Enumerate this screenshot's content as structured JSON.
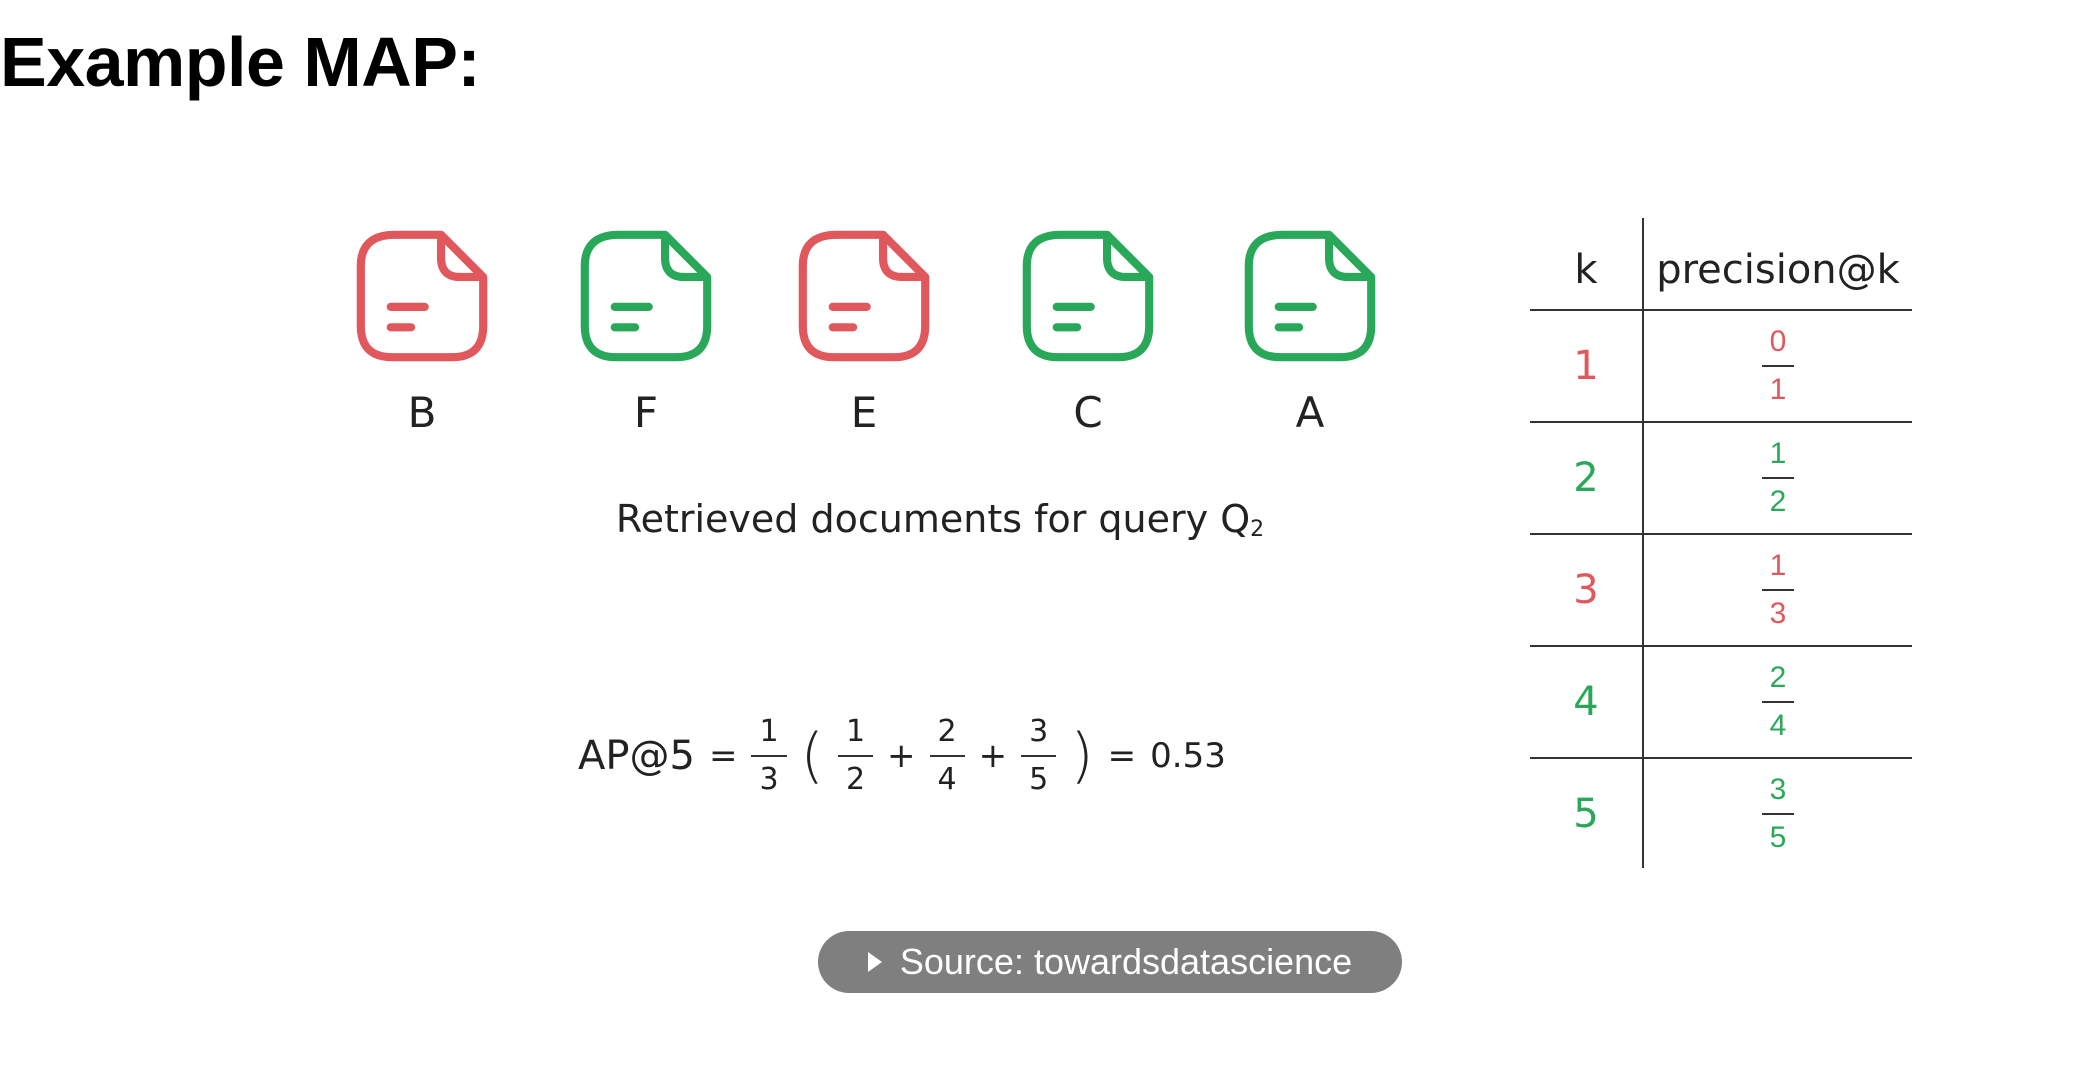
{
  "title": "Example MAP:",
  "colors": {
    "relevant": "#2aa85a",
    "irrelevant": "#e0585c"
  },
  "documents": [
    {
      "label": "B",
      "status": "irrelevant",
      "icon": "document-icon"
    },
    {
      "label": "F",
      "status": "relevant",
      "icon": "document-icon"
    },
    {
      "label": "E",
      "status": "irrelevant",
      "icon": "document-icon"
    },
    {
      "label": "C",
      "status": "relevant",
      "icon": "document-icon"
    },
    {
      "label": "A",
      "status": "relevant",
      "icon": "document-icon"
    }
  ],
  "caption": {
    "text": "Retrieved documents for query Q",
    "subscript": "2"
  },
  "formula": {
    "lhs": "AP@5",
    "equals": "=",
    "prefactor": {
      "num": "1",
      "den": "3"
    },
    "open_paren": "(",
    "terms": [
      {
        "num": "1",
        "den": "2"
      },
      {
        "num": "2",
        "den": "4"
      },
      {
        "num": "3",
        "den": "5"
      }
    ],
    "plus": "+",
    "close_paren": ")",
    "result": "0.53"
  },
  "table": {
    "headers": [
      "k",
      "precision@k"
    ],
    "rows": [
      {
        "k": "1",
        "num": "0",
        "den": "1",
        "status": "irrelevant"
      },
      {
        "k": "2",
        "num": "1",
        "den": "2",
        "status": "relevant"
      },
      {
        "k": "3",
        "num": "1",
        "den": "3",
        "status": "irrelevant"
      },
      {
        "k": "4",
        "num": "2",
        "den": "4",
        "status": "relevant"
      },
      {
        "k": "5",
        "num": "3",
        "den": "5",
        "status": "relevant"
      }
    ]
  },
  "source": {
    "label": "Source: towardsdatascience",
    "icon": "play-triangle-icon"
  }
}
